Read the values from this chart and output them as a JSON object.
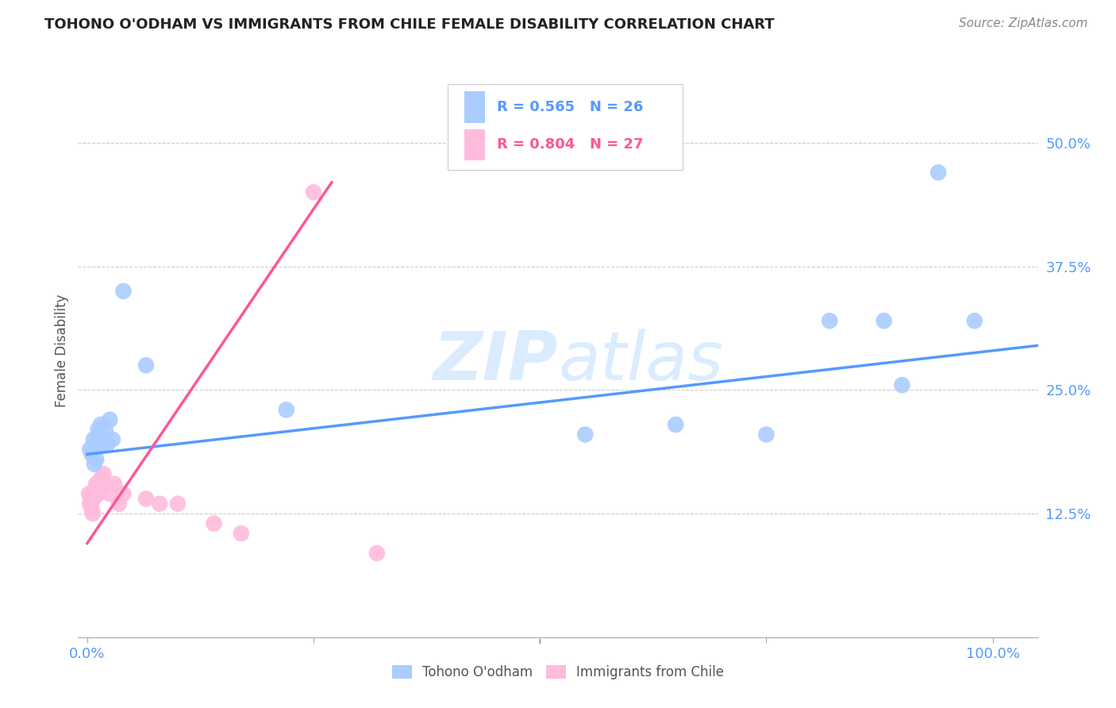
{
  "title": "TOHONO O'ODHAM VS IMMIGRANTS FROM CHILE FEMALE DISABILITY CORRELATION CHART",
  "source": "Source: ZipAtlas.com",
  "ylabel": "Female Disability",
  "x_ticks": [
    0.0,
    0.25,
    0.5,
    0.75,
    1.0
  ],
  "x_tick_labels": [
    "0.0%",
    "",
    "",
    "",
    "100.0%"
  ],
  "y_ticks": [
    0.125,
    0.25,
    0.375,
    0.5
  ],
  "y_tick_labels": [
    "12.5%",
    "25.0%",
    "37.5%",
    "50.0%"
  ],
  "xlim": [
    -0.01,
    1.05
  ],
  "ylim": [
    0.0,
    0.58
  ],
  "blue_R": "0.565",
  "blue_N": "26",
  "pink_R": "0.804",
  "pink_N": "27",
  "blue_color": "#aaccff",
  "pink_color": "#ffbbdd",
  "blue_line_color": "#5599ff",
  "pink_line_color": "#ff5599",
  "tick_color": "#5599ff",
  "legend_label_blue": "Tohono O'odham",
  "legend_label_pink": "Immigrants from Chile",
  "watermark_color": "#cce5ff",
  "background_color": "#ffffff",
  "grid_color": "#cccccc",
  "blue_scatter_x": [
    0.003,
    0.005,
    0.007,
    0.008,
    0.009,
    0.01,
    0.012,
    0.013,
    0.015,
    0.016,
    0.018,
    0.02,
    0.022,
    0.025,
    0.028,
    0.04,
    0.065,
    0.22,
    0.55,
    0.65,
    0.75,
    0.82,
    0.88,
    0.9,
    0.94,
    0.98
  ],
  "blue_scatter_y": [
    0.19,
    0.185,
    0.2,
    0.175,
    0.195,
    0.18,
    0.21,
    0.205,
    0.215,
    0.2,
    0.195,
    0.21,
    0.195,
    0.22,
    0.2,
    0.35,
    0.275,
    0.23,
    0.205,
    0.215,
    0.205,
    0.32,
    0.32,
    0.255,
    0.47,
    0.32
  ],
  "pink_scatter_x": [
    0.002,
    0.003,
    0.004,
    0.005,
    0.006,
    0.007,
    0.008,
    0.009,
    0.01,
    0.011,
    0.012,
    0.014,
    0.015,
    0.016,
    0.018,
    0.02,
    0.025,
    0.03,
    0.035,
    0.04,
    0.065,
    0.08,
    0.1,
    0.14,
    0.17,
    0.25,
    0.32
  ],
  "pink_scatter_y": [
    0.145,
    0.135,
    0.14,
    0.13,
    0.125,
    0.14,
    0.145,
    0.15,
    0.155,
    0.145,
    0.145,
    0.155,
    0.16,
    0.155,
    0.165,
    0.155,
    0.145,
    0.155,
    0.135,
    0.145,
    0.14,
    0.135,
    0.135,
    0.115,
    0.105,
    0.45,
    0.085
  ],
  "blue_line_x0": 0.0,
  "blue_line_x1": 1.05,
  "blue_line_y0": 0.185,
  "blue_line_y1": 0.295,
  "pink_line_x0": 0.0,
  "pink_line_x1": 0.27,
  "pink_line_y0": 0.095,
  "pink_line_y1": 0.46
}
